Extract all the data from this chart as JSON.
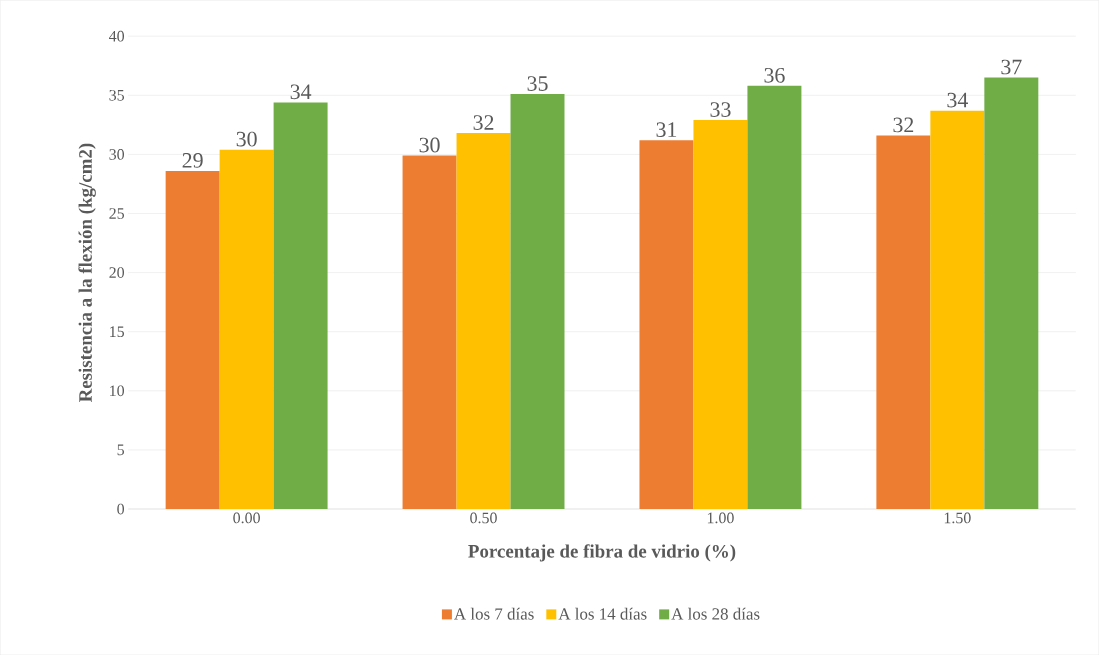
{
  "chart_data": {
    "type": "bar",
    "xlabel": "Porcentaje de fibra de vidrio (%)",
    "ylabel": "Resistencia a la flexión (kg/cm2)",
    "categories": [
      "0.00",
      "0.50",
      "1.00",
      "1.50"
    ],
    "series": [
      {
        "name": "A los 7 días",
        "color": "#ed7d31",
        "values": [
          28.6,
          29.9,
          31.2,
          31.6
        ],
        "value_labels": [
          "29",
          "30",
          "31",
          "32"
        ]
      },
      {
        "name": "A los 14 días",
        "color": "#ffc000",
        "values": [
          30.4,
          31.8,
          32.9,
          33.7
        ],
        "value_labels": [
          "30",
          "32",
          "33",
          "34"
        ]
      },
      {
        "name": "A los 28 días",
        "color": "#70ad47",
        "values": [
          34.4,
          35.1,
          35.8,
          36.5
        ],
        "value_labels": [
          "34",
          "35",
          "36",
          "37"
        ]
      }
    ],
    "ylim": [
      0,
      40
    ],
    "yticks": [
      0,
      5,
      10,
      15,
      20,
      25,
      30,
      35,
      40
    ],
    "grid": "y",
    "legend": "bottom"
  }
}
